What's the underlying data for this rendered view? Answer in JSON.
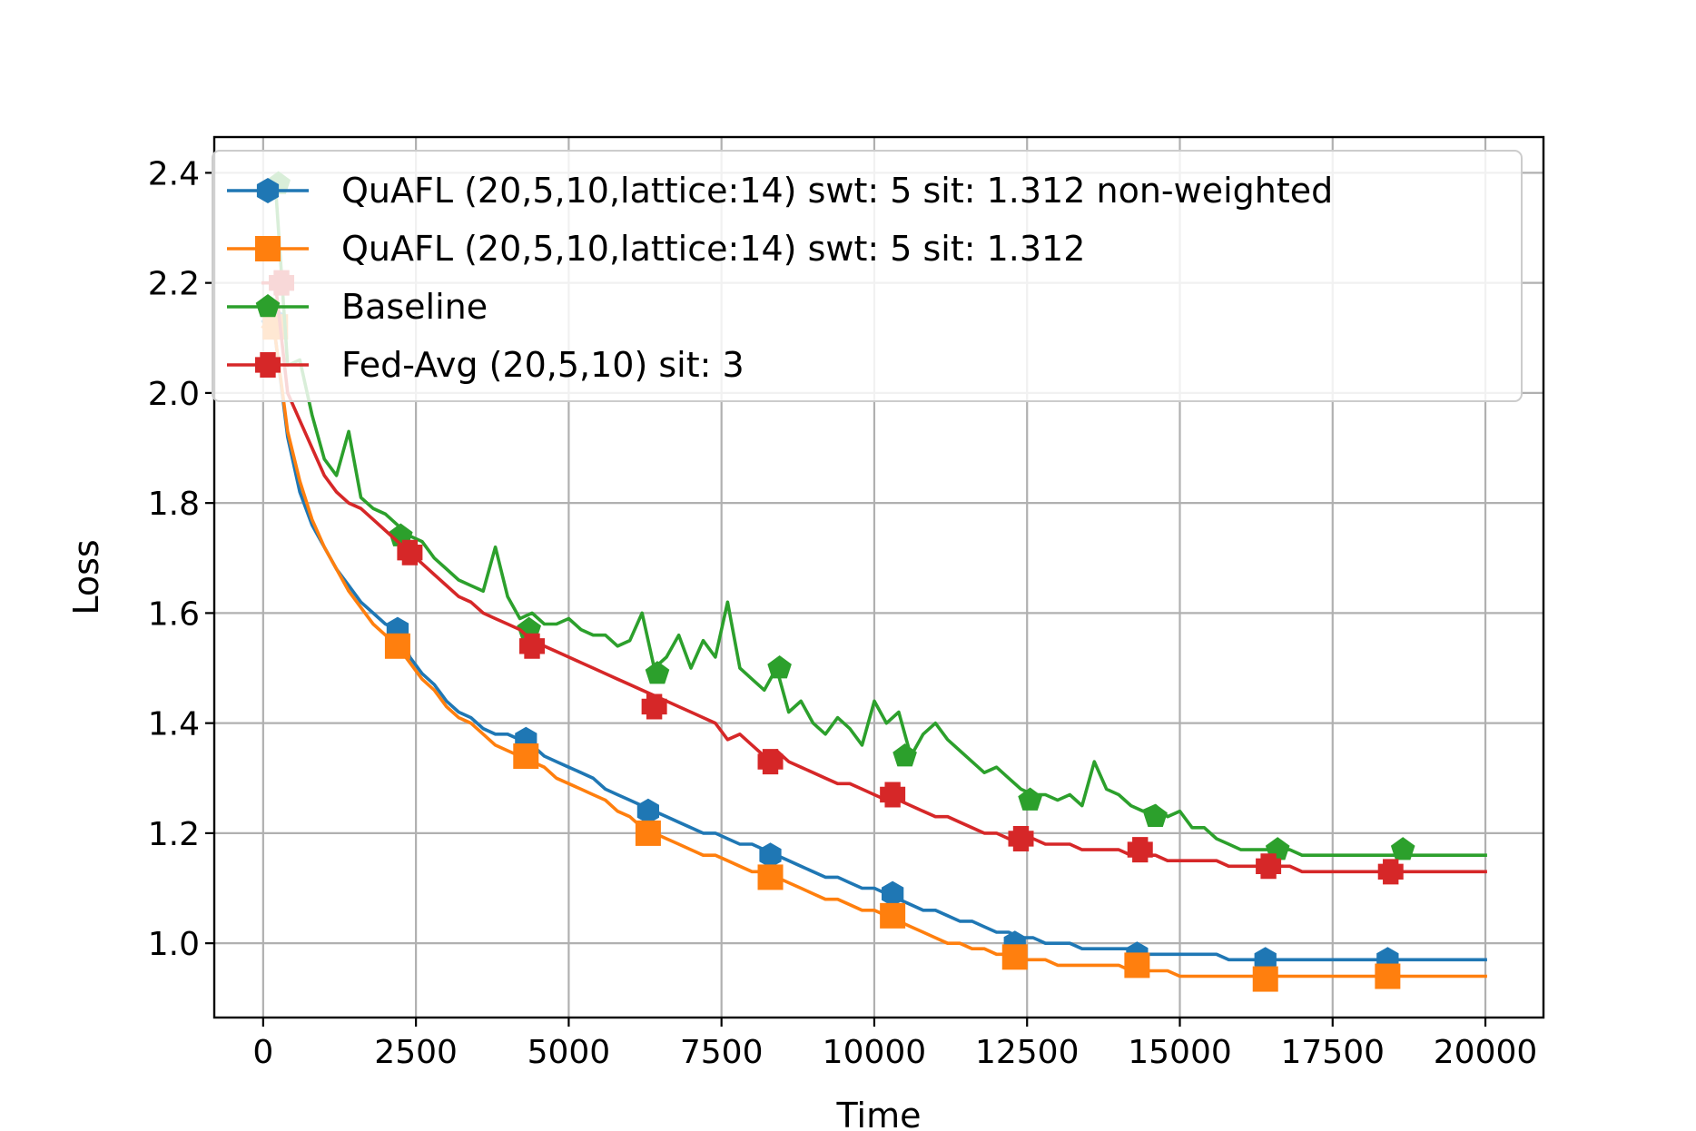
{
  "chart_data": {
    "type": "line",
    "title": "",
    "xlabel": "Time",
    "ylabel": "Loss",
    "xlim": [
      -800,
      20950
    ],
    "ylim": [
      0.865,
      2.465
    ],
    "xticks": [
      0,
      2500,
      5000,
      7500,
      10000,
      12500,
      15000,
      17500,
      20000
    ],
    "yticks": [
      1.0,
      1.2,
      1.4,
      1.6,
      1.8,
      2.0,
      2.2,
      2.4
    ],
    "xtick_labels": [
      "0",
      "2500",
      "5000",
      "7500",
      "10000",
      "12500",
      "15000",
      "17500",
      "20000"
    ],
    "ytick_labels": [
      "1.0",
      "1.2",
      "1.4",
      "1.6",
      "1.8",
      "2.0",
      "2.2",
      "2.4"
    ],
    "grid": true,
    "legend_position": "top-left",
    "series": [
      {
        "name": "QuAFL   (20,5,10,lattice:14) swt: 5 sit: 1.312 non-weighted",
        "color": "#1f77b4",
        "marker": "hexagon",
        "x": [
          0,
          200,
          400,
          600,
          800,
          1000,
          1200,
          1400,
          1600,
          1800,
          2000,
          2200,
          2400,
          2600,
          2800,
          3000,
          3200,
          3400,
          3600,
          3800,
          4000,
          4200,
          4400,
          4600,
          4800,
          5000,
          5200,
          5400,
          5600,
          5800,
          6000,
          6200,
          6400,
          6600,
          6800,
          7000,
          7200,
          7400,
          7600,
          7800,
          8000,
          8200,
          8400,
          8600,
          8800,
          9000,
          9200,
          9400,
          9600,
          9800,
          10000,
          10200,
          10400,
          10600,
          10800,
          11000,
          11200,
          11400,
          11600,
          11800,
          12000,
          12200,
          12400,
          12600,
          12800,
          13000,
          13200,
          13400,
          13600,
          13800,
          14000,
          14200,
          14400,
          14600,
          14800,
          15000,
          15200,
          15400,
          15600,
          15800,
          16000,
          16200,
          16400,
          16600,
          16800,
          17000,
          17200,
          17400,
          17600,
          17800,
          18000,
          18200,
          18400,
          18600,
          18800,
          19000,
          19200,
          19400,
          19600,
          19800,
          20000
        ],
        "y": [
          2.13,
          2.1,
          1.92,
          1.82,
          1.76,
          1.72,
          1.68,
          1.65,
          1.62,
          1.6,
          1.58,
          1.57,
          1.52,
          1.49,
          1.47,
          1.44,
          1.42,
          1.41,
          1.39,
          1.38,
          1.38,
          1.37,
          1.36,
          1.34,
          1.33,
          1.32,
          1.31,
          1.3,
          1.28,
          1.27,
          1.26,
          1.25,
          1.24,
          1.23,
          1.22,
          1.21,
          1.2,
          1.2,
          1.19,
          1.18,
          1.18,
          1.17,
          1.16,
          1.15,
          1.14,
          1.13,
          1.12,
          1.12,
          1.11,
          1.1,
          1.1,
          1.09,
          1.08,
          1.07,
          1.06,
          1.06,
          1.05,
          1.04,
          1.04,
          1.03,
          1.02,
          1.02,
          1.01,
          1.01,
          1.0,
          1.0,
          1.0,
          0.99,
          0.99,
          0.99,
          0.99,
          0.99,
          0.98,
          0.98,
          0.98,
          0.98,
          0.98,
          0.98,
          0.98,
          0.97,
          0.97,
          0.97,
          0.97,
          0.97,
          0.97,
          0.97,
          0.97,
          0.97,
          0.97,
          0.97,
          0.97,
          0.97,
          0.97,
          0.97,
          0.97,
          0.97,
          0.97,
          0.97,
          0.97,
          0.97,
          0.97
        ],
        "marker_x": [
          200,
          2200,
          4300,
          6300,
          8300,
          10300,
          12300,
          14300,
          16400,
          18400
        ],
        "marker_y": [
          2.13,
          1.57,
          1.37,
          1.24,
          1.16,
          1.09,
          1.0,
          0.98,
          0.97,
          0.97
        ]
      },
      {
        "name": "QuAFL   (20,5,10,lattice:14) swt: 5 sit: 1.312",
        "color": "#ff7f0e",
        "marker": "square",
        "x": [
          0,
          200,
          400,
          600,
          800,
          1000,
          1200,
          1400,
          1600,
          1800,
          2000,
          2200,
          2400,
          2600,
          2800,
          3000,
          3200,
          3400,
          3600,
          3800,
          4000,
          4200,
          4400,
          4600,
          4800,
          5000,
          5200,
          5400,
          5600,
          5800,
          6000,
          6200,
          6400,
          6600,
          6800,
          7000,
          7200,
          7400,
          7600,
          7800,
          8000,
          8200,
          8400,
          8600,
          8800,
          9000,
          9200,
          9400,
          9600,
          9800,
          10000,
          10200,
          10400,
          10600,
          10800,
          11000,
          11200,
          11400,
          11600,
          11800,
          12000,
          12200,
          12400,
          12600,
          12800,
          13000,
          13200,
          13400,
          13600,
          13800,
          14000,
          14200,
          14400,
          14600,
          14800,
          15000,
          15200,
          15400,
          15600,
          15800,
          16000,
          16200,
          16400,
          16600,
          16800,
          17000,
          17200,
          17400,
          17600,
          17800,
          18000,
          18200,
          18400,
          18600,
          18800,
          19000,
          19200,
          19400,
          19600,
          19800,
          20000
        ],
        "y": [
          2.12,
          2.1,
          1.93,
          1.84,
          1.77,
          1.72,
          1.68,
          1.64,
          1.61,
          1.58,
          1.56,
          1.54,
          1.51,
          1.48,
          1.46,
          1.43,
          1.41,
          1.4,
          1.38,
          1.36,
          1.35,
          1.34,
          1.33,
          1.32,
          1.3,
          1.29,
          1.28,
          1.27,
          1.26,
          1.24,
          1.23,
          1.21,
          1.2,
          1.19,
          1.18,
          1.17,
          1.16,
          1.16,
          1.15,
          1.14,
          1.13,
          1.13,
          1.12,
          1.11,
          1.1,
          1.09,
          1.08,
          1.08,
          1.07,
          1.06,
          1.06,
          1.05,
          1.04,
          1.03,
          1.02,
          1.01,
          1.0,
          1.0,
          0.99,
          0.99,
          0.98,
          0.98,
          0.97,
          0.97,
          0.97,
          0.96,
          0.96,
          0.96,
          0.96,
          0.96,
          0.96,
          0.95,
          0.95,
          0.95,
          0.95,
          0.94,
          0.94,
          0.94,
          0.94,
          0.94,
          0.94,
          0.94,
          0.94,
          0.94,
          0.94,
          0.94,
          0.94,
          0.94,
          0.94,
          0.94,
          0.94,
          0.94,
          0.94,
          0.94,
          0.94,
          0.94,
          0.94,
          0.94,
          0.94,
          0.94,
          0.94
        ],
        "marker_x": [
          200,
          2200,
          4300,
          6300,
          8300,
          10300,
          12300,
          14300,
          16400,
          18400
        ],
        "marker_y": [
          2.12,
          1.54,
          1.34,
          1.2,
          1.12,
          1.05,
          0.975,
          0.96,
          0.935,
          0.94
        ]
      },
      {
        "name": "Baseline",
        "color": "#2ca02c",
        "marker": "pentagon",
        "x": [
          0,
          200,
          400,
          600,
          800,
          1000,
          1200,
          1400,
          1600,
          1800,
          2000,
          2200,
          2400,
          2600,
          2800,
          3000,
          3200,
          3400,
          3600,
          3800,
          4000,
          4200,
          4400,
          4600,
          4800,
          5000,
          5200,
          5400,
          5600,
          5800,
          6000,
          6200,
          6400,
          6600,
          6800,
          7000,
          7200,
          7400,
          7600,
          7800,
          8000,
          8200,
          8400,
          8600,
          8800,
          9000,
          9200,
          9400,
          9600,
          9800,
          10000,
          10200,
          10400,
          10600,
          10800,
          11000,
          11200,
          11400,
          11600,
          11800,
          12000,
          12200,
          12400,
          12600,
          12800,
          13000,
          13200,
          13400,
          13600,
          13800,
          14000,
          14200,
          14400,
          14600,
          14800,
          15000,
          15200,
          15400,
          15600,
          15800,
          16000,
          16200,
          16400,
          16600,
          16800,
          17000,
          17200,
          17400,
          17600,
          17800,
          18000,
          18200,
          18400,
          18600,
          18800,
          19000,
          19200,
          19400,
          19600,
          19800,
          20000
        ],
        "y": [
          2.38,
          2.38,
          2.05,
          2.06,
          1.96,
          1.88,
          1.85,
          1.93,
          1.81,
          1.79,
          1.78,
          1.76,
          1.74,
          1.73,
          1.7,
          1.68,
          1.66,
          1.65,
          1.64,
          1.72,
          1.63,
          1.59,
          1.6,
          1.58,
          1.58,
          1.59,
          1.57,
          1.56,
          1.56,
          1.54,
          1.55,
          1.6,
          1.5,
          1.52,
          1.56,
          1.5,
          1.55,
          1.52,
          1.62,
          1.5,
          1.48,
          1.46,
          1.5,
          1.42,
          1.44,
          1.4,
          1.38,
          1.41,
          1.39,
          1.36,
          1.44,
          1.4,
          1.42,
          1.34,
          1.38,
          1.4,
          1.37,
          1.35,
          1.33,
          1.31,
          1.32,
          1.3,
          1.28,
          1.27,
          1.27,
          1.26,
          1.27,
          1.25,
          1.33,
          1.28,
          1.27,
          1.25,
          1.24,
          1.25,
          1.23,
          1.24,
          1.21,
          1.21,
          1.19,
          1.18,
          1.17,
          1.17,
          1.17,
          1.17,
          1.17,
          1.16,
          1.16,
          1.16,
          1.16,
          1.16,
          1.16,
          1.16,
          1.16,
          1.16,
          1.16,
          1.16,
          1.16,
          1.16,
          1.16,
          1.16,
          1.16
        ],
        "marker_x": [
          250,
          2250,
          4350,
          6450,
          8450,
          10500,
          12550,
          14600,
          16600,
          18650
        ],
        "marker_y": [
          2.38,
          1.74,
          1.57,
          1.49,
          1.5,
          1.34,
          1.26,
          1.23,
          1.17,
          1.17
        ]
      },
      {
        "name": "Fed-Avg (20,5,10) sit: 3",
        "color": "#d62728",
        "marker": "plus",
        "x": [
          0,
          200,
          400,
          600,
          800,
          1000,
          1200,
          1400,
          1600,
          1800,
          2000,
          2200,
          2400,
          2600,
          2800,
          3000,
          3200,
          3400,
          3600,
          3800,
          4000,
          4200,
          4400,
          4600,
          4800,
          5000,
          5200,
          5400,
          5600,
          5800,
          6000,
          6200,
          6400,
          6600,
          6800,
          7000,
          7200,
          7400,
          7600,
          7800,
          8000,
          8200,
          8400,
          8600,
          8800,
          9000,
          9200,
          9400,
          9600,
          9800,
          10000,
          10200,
          10400,
          10600,
          10800,
          11000,
          11200,
          11400,
          11600,
          11800,
          12000,
          12200,
          12400,
          12600,
          12800,
          13000,
          13200,
          13400,
          13600,
          13800,
          14000,
          14200,
          14400,
          14600,
          14800,
          15000,
          15200,
          15400,
          15600,
          15800,
          16000,
          16200,
          16400,
          16600,
          16800,
          17000,
          17200,
          17400,
          17600,
          17800,
          18000,
          18200,
          18400,
          18600,
          18800,
          19000,
          19200,
          19400,
          19600,
          19800,
          20000
        ],
        "y": [
          2.2,
          2.2,
          2.0,
          1.95,
          1.9,
          1.85,
          1.82,
          1.8,
          1.79,
          1.77,
          1.75,
          1.73,
          1.71,
          1.69,
          1.67,
          1.65,
          1.63,
          1.62,
          1.6,
          1.59,
          1.58,
          1.57,
          1.55,
          1.54,
          1.53,
          1.52,
          1.51,
          1.5,
          1.49,
          1.48,
          1.47,
          1.46,
          1.45,
          1.44,
          1.43,
          1.42,
          1.41,
          1.4,
          1.37,
          1.38,
          1.36,
          1.34,
          1.35,
          1.33,
          1.32,
          1.31,
          1.3,
          1.29,
          1.29,
          1.28,
          1.27,
          1.26,
          1.26,
          1.25,
          1.24,
          1.23,
          1.23,
          1.22,
          1.21,
          1.2,
          1.2,
          1.19,
          1.19,
          1.19,
          1.18,
          1.18,
          1.18,
          1.17,
          1.17,
          1.17,
          1.17,
          1.16,
          1.16,
          1.16,
          1.15,
          1.15,
          1.15,
          1.15,
          1.15,
          1.14,
          1.14,
          1.14,
          1.14,
          1.14,
          1.14,
          1.13,
          1.13,
          1.13,
          1.13,
          1.13,
          1.13,
          1.13,
          1.13,
          1.13,
          1.13,
          1.13,
          1.13,
          1.13,
          1.13,
          1.13,
          1.13
        ],
        "marker_x": [
          300,
          2400,
          4400,
          6400,
          8300,
          10300,
          12400,
          14350,
          16450,
          18450
        ],
        "marker_y": [
          2.2,
          1.71,
          1.54,
          1.43,
          1.33,
          1.27,
          1.19,
          1.17,
          1.14,
          1.13
        ]
      }
    ]
  }
}
